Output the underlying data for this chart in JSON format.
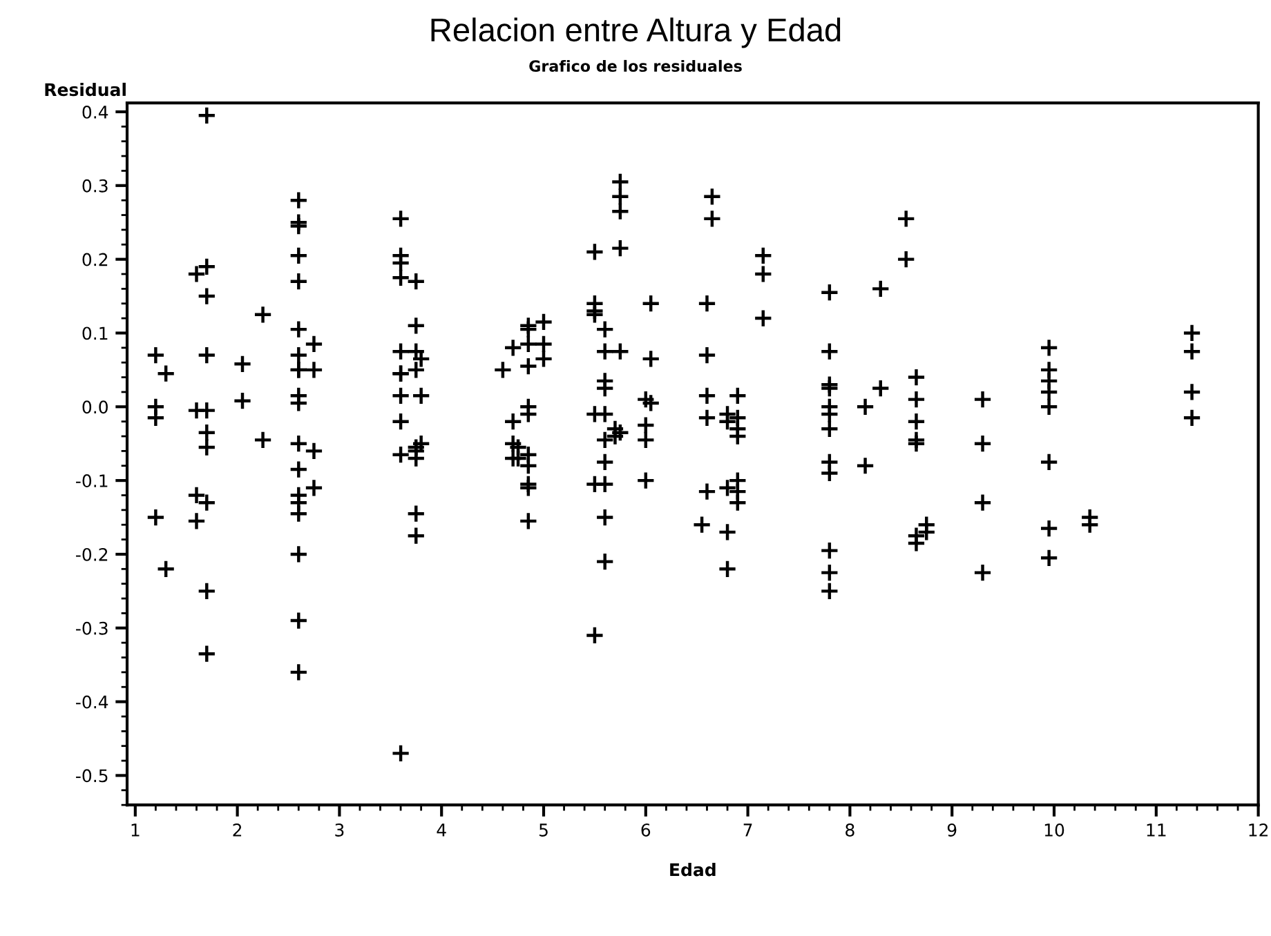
{
  "chart_data": {
    "type": "scatter",
    "title": "Relacion entre Altura y Edad",
    "subtitle": "Grafico de los residuales",
    "xlabel": "Edad",
    "ylabel": "Residual",
    "series": [
      {
        "color": "#000000",
        "x": [
          1.2,
          1.2,
          1.2,
          1.2,
          1.3,
          1.3,
          1.6,
          1.6,
          1.6,
          1.6,
          1.7,
          1.7,
          1.7,
          1.7,
          1.7,
          1.7,
          1.7,
          1.7,
          1.7,
          1.7,
          2.05,
          2.05,
          2.25,
          2.25,
          2.6,
          2.6,
          2.6,
          2.6,
          2.6,
          2.6,
          2.6,
          2.6,
          2.6,
          2.6,
          2.6,
          2.6,
          2.6,
          2.6,
          2.6,
          2.6,
          2.6,
          2.6,
          2.6,
          2.75,
          2.75,
          2.75,
          2.75,
          3.6,
          3.6,
          3.6,
          3.6,
          3.6,
          3.6,
          3.6,
          3.6,
          3.6,
          3.6,
          3.6,
          3.75,
          3.75,
          3.75,
          3.75,
          3.75,
          3.75,
          3.75,
          3.75,
          3.75,
          3.8,
          3.8,
          3.8,
          4.6,
          4.7,
          4.7,
          4.7,
          4.7,
          4.75,
          4.75,
          4.85,
          4.85,
          4.85,
          4.85,
          4.85,
          4.85,
          4.85,
          4.85,
          4.85,
          4.85,
          4.85,
          5.0,
          5.0,
          5.0,
          5.5,
          5.5,
          5.5,
          5.5,
          5.5,
          5.5,
          5.5,
          5.6,
          5.6,
          5.6,
          5.6,
          5.6,
          5.6,
          5.6,
          5.6,
          5.6,
          5.6,
          5.7,
          5.7,
          5.75,
          5.75,
          5.75,
          5.75,
          5.75,
          5.75,
          6.0,
          6.0,
          6.0,
          6.0,
          6.05,
          6.05,
          6.05,
          6.6,
          6.6,
          6.6,
          6.6,
          6.6,
          6.55,
          6.65,
          6.65,
          6.8,
          6.8,
          6.8,
          6.8,
          6.8,
          6.9,
          6.9,
          6.9,
          6.9,
          6.9,
          6.9,
          6.9,
          7.15,
          7.15,
          7.15,
          7.8,
          7.8,
          7.8,
          7.8,
          7.8,
          7.8,
          7.8,
          7.8,
          7.8,
          7.8,
          7.8,
          7.8,
          8.15,
          8.15,
          8.3,
          8.3,
          8.55,
          8.55,
          8.65,
          8.65,
          8.65,
          8.65,
          8.65,
          8.65,
          8.65,
          8.75,
          8.75,
          9.3,
          9.3,
          9.3,
          9.3,
          9.95,
          9.95,
          9.95,
          9.95,
          9.95,
          9.95,
          9.95,
          9.95,
          10.35,
          10.35,
          11.35,
          11.35,
          11.35,
          11.35
        ],
        "values": [
          0.07,
          0.0,
          -0.015,
          -0.15,
          0.045,
          -0.22,
          0.18,
          -0.005,
          -0.12,
          -0.155,
          0.395,
          0.19,
          0.15,
          0.07,
          -0.005,
          -0.035,
          -0.055,
          -0.13,
          -0.25,
          -0.335,
          0.058,
          0.008,
          0.125,
          -0.045,
          0.28,
          0.25,
          0.245,
          0.205,
          0.17,
          0.105,
          0.07,
          0.05,
          0.05,
          0.015,
          0.005,
          -0.05,
          -0.085,
          -0.12,
          -0.13,
          -0.145,
          -0.2,
          -0.29,
          -0.36,
          0.085,
          0.05,
          -0.06,
          -0.11,
          0.255,
          0.205,
          0.195,
          0.175,
          0.075,
          0.045,
          0.045,
          0.015,
          -0.02,
          -0.065,
          -0.47,
          0.17,
          0.11,
          0.075,
          0.05,
          -0.055,
          -0.06,
          -0.07,
          -0.145,
          -0.175,
          0.065,
          0.015,
          -0.05,
          0.05,
          0.08,
          -0.02,
          -0.05,
          -0.07,
          -0.055,
          -0.07,
          0.11,
          0.105,
          0.085,
          0.055,
          0.0,
          -0.01,
          -0.065,
          -0.08,
          -0.105,
          -0.11,
          -0.155,
          0.115,
          0.085,
          0.065,
          0.21,
          0.14,
          0.13,
          0.125,
          -0.01,
          -0.105,
          -0.31,
          0.105,
          0.075,
          0.035,
          0.025,
          -0.01,
          -0.045,
          -0.075,
          -0.105,
          -0.15,
          -0.21,
          -0.03,
          -0.04,
          0.305,
          0.285,
          0.265,
          0.215,
          0.075,
          -0.035,
          0.01,
          -0.025,
          -0.045,
          -0.1,
          0.14,
          0.065,
          0.005,
          0.14,
          0.07,
          0.015,
          -0.015,
          -0.115,
          -0.16,
          0.285,
          0.255,
          -0.01,
          -0.02,
          -0.11,
          -0.17,
          -0.22,
          0.015,
          -0.015,
          -0.03,
          -0.04,
          -0.1,
          -0.115,
          -0.13,
          0.205,
          0.18,
          0.12,
          0.155,
          0.075,
          0.03,
          0.025,
          0.0,
          -0.01,
          -0.03,
          -0.075,
          -0.09,
          -0.195,
          -0.225,
          -0.25,
          0.0,
          -0.08,
          0.16,
          0.025,
          0.255,
          0.2,
          0.04,
          0.01,
          -0.02,
          -0.045,
          -0.05,
          -0.175,
          -0.185,
          -0.16,
          -0.17,
          0.01,
          -0.05,
          -0.13,
          -0.225,
          0.08,
          0.05,
          0.035,
          0.02,
          0.0,
          -0.075,
          -0.165,
          -0.205,
          -0.15,
          -0.16,
          0.1,
          0.075,
          0.02,
          -0.015
        ]
      }
    ],
    "marker": "cross",
    "xlim": [
      0.92,
      12
    ],
    "xticks": [
      1,
      2,
      3,
      4,
      5,
      6,
      7,
      8,
      9,
      10,
      11,
      12
    ],
    "ylim": [
      -0.54,
      0.412
    ],
    "yticks": [
      {
        "value": -0.5,
        "label": "-0.5"
      },
      {
        "value": -0.4,
        "label": "-0.4"
      },
      {
        "value": -0.3,
        "label": "-0.3"
      },
      {
        "value": -0.2,
        "label": "-0.2"
      },
      {
        "value": -0.1,
        "label": "-0.1"
      },
      {
        "value": 0,
        "label": "0.0"
      },
      {
        "value": 0.1,
        "label": "0.1"
      },
      {
        "value": 0.2,
        "label": "0.2"
      },
      {
        "value": 0.3,
        "label": "0.3"
      },
      {
        "value": 0.4,
        "label": "0.4"
      }
    ],
    "grid": false
  }
}
